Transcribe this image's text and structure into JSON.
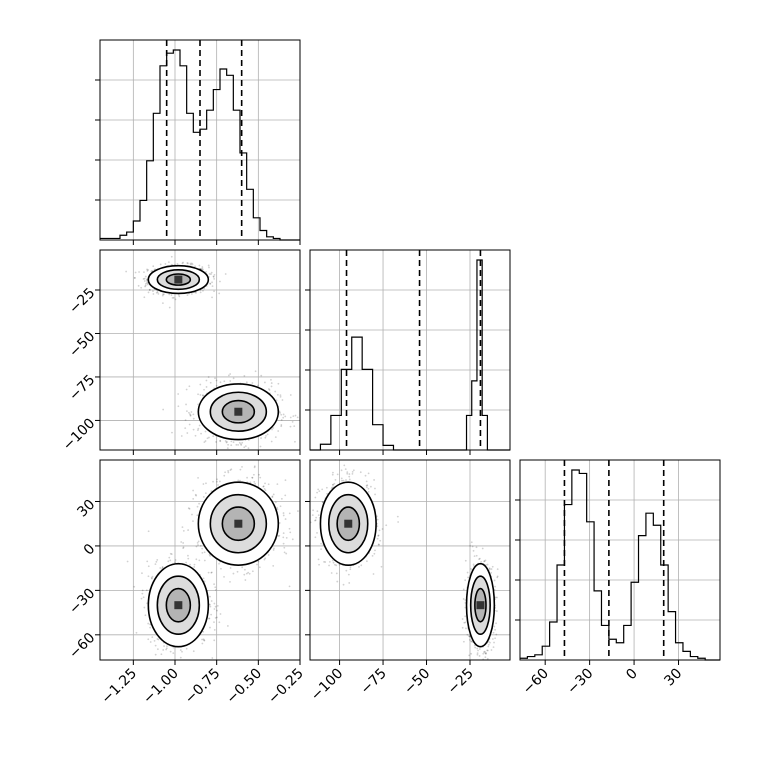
{
  "chart_data": {
    "type": "corner",
    "parameters": [
      {
        "range": [
          -1.45,
          -0.25
        ],
        "ticks": [
          -1.25,
          -1.0,
          -0.75,
          -0.5,
          -0.25
        ],
        "tick_labels": [
          "−1.25",
          "−1.00",
          "−0.75",
          "−0.50",
          "−0.25"
        ],
        "quantiles": [
          -1.05,
          -0.85,
          -0.6
        ],
        "hist_bins": [
          -1.45,
          -1.41,
          -1.37,
          -1.33,
          -1.29,
          -1.25,
          -1.21,
          -1.17,
          -1.13,
          -1.09,
          -1.05,
          -1.01,
          -0.97,
          -0.93,
          -0.89,
          -0.85,
          -0.81,
          -0.77,
          -0.73,
          -0.69,
          -0.65,
          -0.61,
          -0.57,
          -0.53,
          -0.49,
          -0.45,
          -0.41,
          -0.37,
          -0.33,
          -0.29,
          -0.25
        ],
        "hist_counts": [
          1,
          1,
          1,
          3,
          5,
          12,
          25,
          50,
          80,
          110,
          118,
          120,
          110,
          80,
          68,
          70,
          82,
          95,
          108,
          104,
          82,
          55,
          32,
          14,
          6,
          2,
          1,
          0,
          0,
          0
        ]
      },
      {
        "range": [
          -117,
          -2
        ],
        "ticks": [
          -100,
          -75,
          -50,
          -25
        ],
        "tick_labels": [
          "−100",
          "−75",
          "−50",
          "−25"
        ],
        "quantiles": [
          -96,
          -54,
          -19
        ],
        "hist_bins": [
          -117,
          -111,
          -105,
          -99,
          -93,
          -87,
          -81,
          -75,
          -69,
          -63,
          -57,
          -51,
          -45,
          -39,
          -33,
          -27,
          -24,
          -21,
          -18,
          -15,
          -2
        ],
        "hist_counts": [
          0,
          5,
          30,
          70,
          98,
          70,
          22,
          4,
          0,
          0,
          0,
          0,
          0,
          0,
          0,
          30,
          60,
          165,
          30,
          0
        ]
      },
      {
        "range": [
          -77,
          58
        ],
        "ticks": [
          -60,
          -30,
          0,
          30
        ],
        "tick_labels": [
          "−60",
          "−30",
          "0",
          "30"
        ],
        "quantiles": [
          -47,
          -17,
          20
        ],
        "hist_bins": [
          -77,
          -72,
          -67,
          -62,
          -57,
          -52,
          -47,
          -42,
          -37,
          -32,
          -27,
          -22,
          -17,
          -12,
          -7,
          -2,
          3,
          8,
          13,
          18,
          23,
          28,
          33,
          38,
          43,
          48,
          53,
          58
        ],
        "hist_counts": [
          1,
          2,
          3,
          8,
          22,
          55,
          90,
          110,
          108,
          80,
          40,
          20,
          12,
          10,
          20,
          45,
          72,
          85,
          78,
          55,
          28,
          10,
          5,
          2,
          1,
          0,
          0
        ]
      }
    ],
    "clusters": [
      {
        "mean": [
          -0.98,
          -19,
          -40
        ],
        "sd": [
          0.09,
          4,
          14
        ]
      },
      {
        "mean": [
          -0.62,
          -95,
          15
        ],
        "sd": [
          0.12,
          8,
          14
        ]
      }
    ],
    "contour_levels": [
      "39.3%",
      "86.5%"
    ]
  }
}
